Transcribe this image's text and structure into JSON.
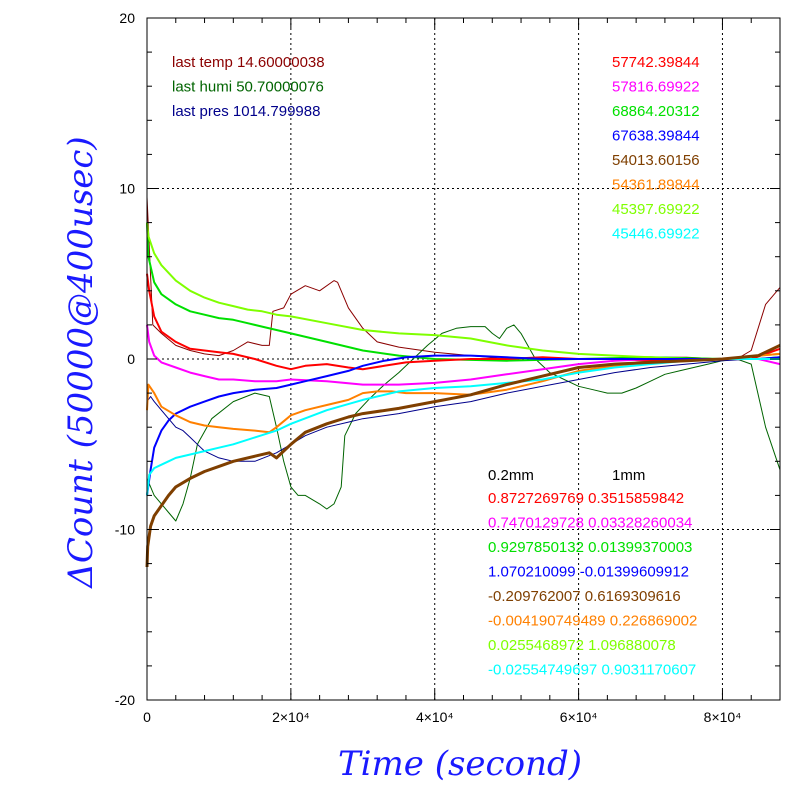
{
  "chart_data": {
    "type": "line",
    "xlabel": "Time (second)",
    "ylabel": "ΔCount (50000@400usec)",
    "xlim": [
      0,
      88000
    ],
    "ylim": [
      -20,
      20
    ],
    "x_ticks": [
      {
        "value": 0,
        "label": "0"
      },
      {
        "value": 20000,
        "label": "2×10⁴"
      },
      {
        "value": 40000,
        "label": "4×10⁴"
      },
      {
        "value": 60000,
        "label": "6×10⁴"
      },
      {
        "value": 80000,
        "label": "8×10⁴"
      }
    ],
    "y_ticks": [
      {
        "value": -20,
        "label": "-20"
      },
      {
        "value": -10,
        "label": "-10"
      },
      {
        "value": 0,
        "label": "0"
      },
      {
        "value": 10,
        "label": "10"
      },
      {
        "value": 20,
        "label": "20"
      }
    ],
    "grid": "dotted",
    "env_info": [
      {
        "text": "last temp 14.60000038",
        "color": "#8b0000"
      },
      {
        "text": "last humi 50.70000076",
        "color": "#006400"
      },
      {
        "text": "last pres 1014.799988",
        "color": "#00008b"
      }
    ],
    "count_labels": [
      {
        "text": "57742.39844",
        "color": "#ff0000"
      },
      {
        "text": "57816.69922",
        "color": "#ff00ff"
      },
      {
        "text": "68864.20312",
        "color": "#00e000"
      },
      {
        "text": "67638.39844",
        "color": "#0000ff"
      },
      {
        "text": "54013.60156",
        "color": "#7f3f00"
      },
      {
        "text": "54361.89844",
        "color": "#ff8000"
      },
      {
        "text": "45397.69922",
        "color": "#7fff00"
      },
      {
        "text": "45446.69922",
        "color": "#00ffff"
      }
    ],
    "slope_header": [
      "0.2mm",
      "1mm"
    ],
    "slope_labels": [
      {
        "text": "0.8727269769 0.3515859842",
        "color": "#ff0000"
      },
      {
        "text": "0.7470129728 0.03328260034",
        "color": "#ff00ff"
      },
      {
        "text": "0.9297850132 0.01399370003",
        "color": "#00e000"
      },
      {
        "text": "1.070210099 -0.01399609912",
        "color": "#0000ff"
      },
      {
        "text": "-0.209762007 0.6169309616",
        "color": "#7f3f00"
      },
      {
        "text": "-0.004190749489 0.226869002",
        "color": "#ff8000"
      },
      {
        "text": "0.0255468972 1.096880078",
        "color": "#7fff00"
      },
      {
        "text": "-0.02554749697 0.9031170607",
        "color": "#00ffff"
      }
    ],
    "series": [
      {
        "color": "#8b0000",
        "width": 1,
        "x": [
          0,
          800,
          2000,
          4000,
          6000,
          8000,
          10000,
          12000,
          14000,
          16000,
          17000,
          17500,
          19000,
          20000,
          22000,
          24000,
          26000,
          26500,
          28000,
          30000,
          32000,
          35000,
          40000,
          45000,
          50000,
          55000,
          60000,
          65000,
          70000,
          75000,
          80000,
          82000,
          84000,
          86000,
          88000
        ],
        "y": [
          9.5,
          2.0,
          1.5,
          0.8,
          0.5,
          0.3,
          0.2,
          0.5,
          1.0,
          0.8,
          0.8,
          2.8,
          3.0,
          3.8,
          4.3,
          4.0,
          4.6,
          4.5,
          3.0,
          1.8,
          1.0,
          0.7,
          0.4,
          0.2,
          0.0,
          0.1,
          0.0,
          0.0,
          0.1,
          0.1,
          0.0,
          0.0,
          0.5,
          3.2,
          4.2
        ]
      },
      {
        "color": "#006400",
        "width": 1,
        "x": [
          0,
          1000,
          2000,
          3000,
          4000,
          5000,
          6000,
          7000,
          9000,
          12000,
          15000,
          17000,
          18000,
          19000,
          20000,
          21000,
          22000,
          24000,
          25000,
          26000,
          27000,
          27500,
          29000,
          31000,
          33000,
          35000,
          37000,
          39000,
          41000,
          43000,
          45000,
          47000,
          48000,
          49000,
          50000,
          51000,
          52000,
          54000,
          56000,
          58000,
          60000,
          62000,
          64000,
          66000,
          68000,
          70000,
          72000,
          74000,
          76000,
          78000,
          80000,
          82000,
          84000,
          86000,
          88000
        ],
        "y": [
          -7.0,
          -8.0,
          -8.5,
          -9.0,
          -9.5,
          -8.5,
          -7.0,
          -5.0,
          -3.5,
          -2.5,
          -2.0,
          -2.2,
          -4.0,
          -6.0,
          -7.5,
          -8.0,
          -8.0,
          -8.5,
          -8.8,
          -8.5,
          -7.5,
          -4.5,
          -3.2,
          -2.3,
          -1.5,
          -0.8,
          0.0,
          0.8,
          1.5,
          1.8,
          1.9,
          1.9,
          1.5,
          1.2,
          1.8,
          2.0,
          1.5,
          0.0,
          -0.8,
          -1.2,
          -1.6,
          -1.8,
          -2.0,
          -2.0,
          -1.7,
          -1.3,
          -0.9,
          -0.7,
          -0.5,
          -0.3,
          -0.1,
          0.0,
          -0.3,
          -4.0,
          -6.5
        ]
      },
      {
        "color": "#00008b",
        "width": 1,
        "x": [
          0,
          500,
          1000,
          2000,
          3000,
          4000,
          5000,
          6000,
          7000,
          8000,
          10000,
          12000,
          15000,
          18000,
          20000,
          22000,
          25000,
          28000,
          30000,
          35000,
          40000,
          45000,
          50000,
          55000,
          60000,
          65000,
          70000,
          75000,
          80000,
          84000,
          86000,
          88000
        ],
        "y": [
          -2.5,
          -2.2,
          -2.5,
          -3.0,
          -3.5,
          -4.0,
          -4.2,
          -4.6,
          -5.0,
          -5.4,
          -5.8,
          -6.0,
          -6.0,
          -5.5,
          -5.0,
          -4.5,
          -4.0,
          -3.7,
          -3.5,
          -3.2,
          -2.8,
          -2.5,
          -2.0,
          -1.6,
          -1.2,
          -0.8,
          -0.5,
          -0.3,
          -0.1,
          0.0,
          0.0,
          0.1
        ]
      },
      {
        "color": "#00e000",
        "width": 2,
        "x": [
          0,
          200,
          1000,
          2000,
          4000,
          6000,
          8000,
          10000,
          12000,
          14000,
          16000,
          18000,
          20000,
          25000,
          30000,
          35000,
          40000,
          50000,
          60000,
          70000,
          80000,
          85000,
          88000
        ],
        "y": [
          8.0,
          6.0,
          4.5,
          3.8,
          3.2,
          2.8,
          2.6,
          2.4,
          2.3,
          2.1,
          1.9,
          1.7,
          1.5,
          1.0,
          0.5,
          0.2,
          0.0,
          -0.1,
          0.0,
          0.1,
          0.0,
          0.0,
          0.1
        ]
      },
      {
        "color": "#7fff00",
        "width": 2,
        "x": [
          0,
          200,
          1000,
          2000,
          4000,
          6000,
          8000,
          10000,
          12000,
          14000,
          16000,
          18000,
          20000,
          25000,
          30000,
          35000,
          40000,
          45000,
          50000,
          55000,
          60000,
          65000,
          70000,
          75000,
          80000,
          85000,
          88000
        ],
        "y": [
          8.0,
          7.2,
          6.2,
          5.5,
          4.6,
          4.0,
          3.6,
          3.3,
          3.1,
          2.9,
          2.8,
          2.6,
          2.5,
          2.1,
          1.7,
          1.5,
          1.4,
          1.2,
          0.8,
          0.5,
          0.3,
          0.2,
          0.1,
          0.0,
          0.0,
          0.2,
          0.3
        ]
      },
      {
        "color": "#ff0000",
        "width": 2,
        "x": [
          0,
          300,
          1000,
          2000,
          4000,
          6000,
          8000,
          10000,
          12000,
          15000,
          18000,
          20000,
          22000,
          25000,
          28000,
          30000,
          33000,
          36000,
          40000,
          45000,
          50000,
          55000,
          60000,
          65000,
          70000,
          75000,
          80000,
          84000,
          86000,
          88000
        ],
        "y": [
          5.0,
          4.0,
          2.5,
          1.6,
          1.0,
          0.6,
          0.5,
          0.4,
          0.3,
          0.0,
          -0.4,
          -0.6,
          -0.4,
          -0.3,
          -0.5,
          -0.6,
          -0.4,
          -0.2,
          -0.1,
          0.0,
          0.0,
          0.1,
          0.0,
          0.0,
          -0.1,
          0.0,
          0.0,
          0.0,
          0.3,
          0.6
        ]
      },
      {
        "color": "#ff00ff",
        "width": 2,
        "x": [
          0,
          300,
          1000,
          2000,
          4000,
          6000,
          8000,
          10000,
          12000,
          15000,
          18000,
          20000,
          25000,
          30000,
          35000,
          40000,
          45000,
          50000,
          55000,
          60000,
          65000,
          70000,
          75000,
          80000,
          85000,
          88000
        ],
        "y": [
          2.0,
          1.0,
          0.2,
          -0.2,
          -0.5,
          -0.8,
          -1.0,
          -1.2,
          -1.2,
          -1.3,
          -1.3,
          -1.2,
          -1.3,
          -1.5,
          -1.5,
          -1.4,
          -1.2,
          -0.9,
          -0.6,
          -0.3,
          -0.1,
          0.0,
          0.0,
          0.0,
          0.0,
          -0.3
        ]
      },
      {
        "color": "#0000ff",
        "width": 2,
        "x": [
          0,
          500,
          1000,
          2000,
          3000,
          4000,
          6000,
          8000,
          10000,
          12000,
          15000,
          18000,
          20000,
          22000,
          25000,
          28000,
          30000,
          33000,
          36000,
          40000,
          45000,
          50000,
          55000,
          60000,
          65000,
          70000,
          75000,
          80000,
          85000,
          88000
        ],
        "y": [
          -8.0,
          -6.5,
          -5.2,
          -4.2,
          -3.6,
          -3.2,
          -2.8,
          -2.5,
          -2.2,
          -2.0,
          -1.8,
          -1.7,
          -1.5,
          -1.3,
          -1.0,
          -0.7,
          -0.4,
          -0.1,
          0.1,
          0.2,
          0.2,
          0.1,
          0.0,
          0.0,
          0.0,
          0.0,
          0.0,
          0.0,
          0.0,
          0.1
        ]
      },
      {
        "color": "#ff8000",
        "width": 2,
        "x": [
          0,
          200,
          1000,
          2000,
          4000,
          6000,
          8000,
          10000,
          12000,
          15000,
          17000,
          18000,
          20000,
          22000,
          25000,
          28000,
          30000,
          32000,
          34000,
          36000,
          40000,
          45000,
          50000,
          55000,
          60000,
          65000,
          70000,
          75000,
          80000,
          85000,
          88000
        ],
        "y": [
          -3.0,
          -1.5,
          -2.0,
          -2.8,
          -3.3,
          -3.7,
          -3.9,
          -4.0,
          -4.1,
          -4.2,
          -4.3,
          -4.0,
          -3.3,
          -3.0,
          -2.7,
          -2.4,
          -2.0,
          -1.9,
          -1.9,
          -2.0,
          -2.0,
          -2.1,
          -1.8,
          -1.3,
          -0.7,
          -0.4,
          -0.2,
          -0.1,
          0.0,
          0.2,
          0.3
        ]
      },
      {
        "color": "#00ffff",
        "width": 2,
        "x": [
          0,
          300,
          1000,
          2000,
          3000,
          4000,
          6000,
          8000,
          10000,
          12000,
          15000,
          18000,
          20000,
          25000,
          30000,
          35000,
          40000,
          45000,
          50000,
          55000,
          60000,
          65000,
          70000,
          75000,
          80000,
          85000,
          88000
        ],
        "y": [
          -8.0,
          -6.8,
          -6.4,
          -6.2,
          -6.0,
          -5.8,
          -5.6,
          -5.4,
          -5.2,
          -5.0,
          -4.6,
          -4.2,
          -3.8,
          -3.0,
          -2.4,
          -1.9,
          -1.7,
          -1.6,
          -1.4,
          -1.2,
          -0.8,
          -0.5,
          -0.3,
          -0.1,
          0.0,
          0.0,
          0.0
        ]
      },
      {
        "color": "#7f3f00",
        "width": 3,
        "x": [
          0,
          100,
          500,
          1000,
          2000,
          3000,
          4000,
          6000,
          8000,
          10000,
          12000,
          15000,
          17000,
          18000,
          20000,
          22000,
          25000,
          28000,
          30000,
          35000,
          40000,
          45000,
          50000,
          55000,
          60000,
          65000,
          70000,
          75000,
          80000,
          85000,
          88000
        ],
        "y": [
          -12.2,
          -11.0,
          -9.8,
          -9.2,
          -8.6,
          -8.0,
          -7.5,
          -7.0,
          -6.6,
          -6.3,
          -6.0,
          -5.7,
          -5.5,
          -5.8,
          -5.0,
          -4.3,
          -3.8,
          -3.4,
          -3.2,
          -2.9,
          -2.5,
          -2.1,
          -1.5,
          -1.0,
          -0.5,
          -0.3,
          -0.2,
          -0.1,
          0.0,
          0.2,
          0.8
        ]
      }
    ]
  }
}
